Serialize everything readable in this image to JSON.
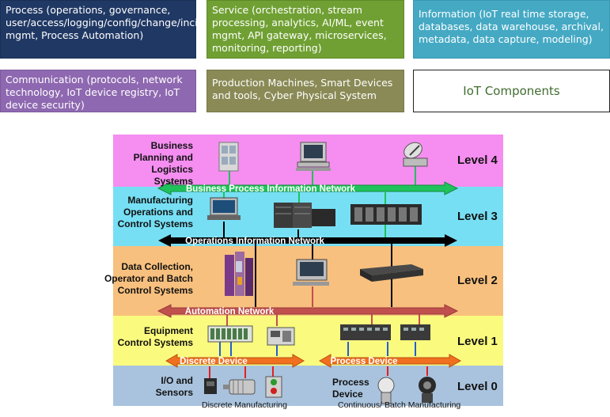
{
  "components": {
    "process": "Process (operations, governance, user/access/logging/config/change/incident/release/device mgmt, Process Automation)",
    "service": "Service (orchestration, stream processing, analytics, AI/ML, event mgmt, API gateway, microservices, monitoring, reporting)",
    "information": "Information (IoT real time storage, databases, data warehouse, archival, metadata, data capture, modeling)",
    "communication": "Communication (protocols, network technology, IoT device registry, IoT device security)",
    "production": "Production Machines, Smart Devices and tools, Cyber Physical System",
    "title": "IoT Components"
  },
  "levels": [
    {
      "label": "Business Planning and Logistics Systems",
      "level": "Level 4",
      "color": "#f58ef0"
    },
    {
      "label": "Manufacturing Operations and Control Systems",
      "level": "Level 3",
      "color": "#76dff4"
    },
    {
      "label": "Data Collection, Operator and Batch Control Systems",
      "level": "Level 2",
      "color": "#f8c07e"
    },
    {
      "label": "Equipment Control Systems",
      "level": "Level 1",
      "color": "#fafa7e"
    },
    {
      "label": "I/O and Sensors",
      "level": "Level 0",
      "color": "#a9c3de"
    }
  ],
  "networks": {
    "business": "Business Process Information Network",
    "operations": "Operations Information Network",
    "automation": "Automation Network",
    "discrete": "Discrete Device",
    "process": "Process Device"
  },
  "level0_labels": {
    "process_device": "Process Device",
    "discrete_manufacturing": "Discrete Manufacturing",
    "continuous_manufacturing": "Continuous/ Batch Manufacturing"
  },
  "colors": {
    "business_network": "#1fc25a",
    "operations_network": "#000000",
    "automation_network": "#c0504d",
    "device_network": "#f07020"
  },
  "icons": [
    "server-icon",
    "desktop-computer-icon",
    "satellite-dish-icon",
    "rack-server-icon",
    "storage-array-icon",
    "control-cabinet-icon",
    "plc-icon",
    "io-module-icon",
    "motor-icon",
    "sensor-icon",
    "push-button-station-icon",
    "valve-icon",
    "pressure-transmitter-icon"
  ]
}
